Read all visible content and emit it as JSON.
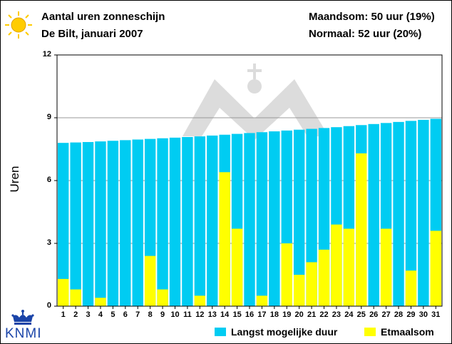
{
  "header": {
    "title": "Aantal uren zonneschijn",
    "subtitle": "De Bilt, januari 2007",
    "monthly_total": "Maandsom: 50 uur (19%)",
    "normal": "Normaal: 52 uur (20%)"
  },
  "logo_text": "KNMI",
  "icons": {
    "sun": "sun-icon",
    "crown": "crown-icon"
  },
  "colors": {
    "max_duration": "#00ccf2",
    "daily_sum": "#ffff00",
    "logo_blue": "#1a44a8",
    "sun_yellow": "#ffcc00"
  },
  "chart_data": {
    "type": "bar",
    "ylabel": "Uren",
    "xlabel": "",
    "ylim": [
      0,
      12
    ],
    "yticks": [
      0,
      3,
      6,
      9,
      12
    ],
    "grid": "horizontal",
    "legend_position": "bottom-right",
    "categories": [
      "1",
      "2",
      "3",
      "4",
      "5",
      "6",
      "7",
      "8",
      "9",
      "10",
      "11",
      "12",
      "13",
      "14",
      "15",
      "16",
      "17",
      "18",
      "19",
      "20",
      "21",
      "22",
      "23",
      "24",
      "25",
      "26",
      "27",
      "28",
      "29",
      "30",
      "31"
    ],
    "series": [
      {
        "name": "Langst mogelijke duur",
        "color": "#00ccf2",
        "values": [
          7.8,
          7.82,
          7.84,
          7.87,
          7.9,
          7.93,
          7.96,
          7.99,
          8.02,
          8.05,
          8.08,
          8.11,
          8.15,
          8.19,
          8.23,
          8.27,
          8.31,
          8.35,
          8.39,
          8.43,
          8.47,
          8.51,
          8.55,
          8.6,
          8.65,
          8.7,
          8.75,
          8.8,
          8.85,
          8.9,
          8.95
        ]
      },
      {
        "name": "Etmaalsom",
        "color": "#ffff00",
        "values": [
          1.3,
          0.8,
          0,
          0.4,
          0,
          0,
          0,
          2.4,
          0.8,
          0,
          0,
          0.5,
          0,
          6.4,
          3.7,
          0,
          0.5,
          0,
          3.0,
          1.5,
          2.1,
          2.7,
          3.9,
          3.7,
          7.3,
          0,
          3.7,
          0,
          1.7,
          0,
          3.6
        ]
      }
    ]
  }
}
